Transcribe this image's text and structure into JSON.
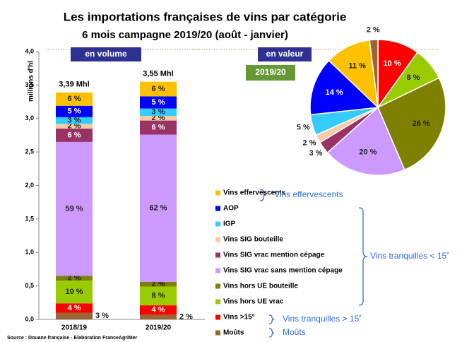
{
  "title": "Les importations françaises de vins par catégorie",
  "subtitle": "6 mois campagne 2019/20 (août - janvier)",
  "source": "Source : Douane française - Elaboration FranceAgriMer",
  "chart_data": [
    {
      "type": "bar",
      "stacked": true,
      "label_left": "en volume",
      "ylabel": "millions d'hl",
      "categories": [
        "2018/19",
        "2019/20"
      ],
      "ylim": [
        0,
        4
      ],
      "yticks": [
        {
          "value": 0,
          "label": "0,0"
        },
        {
          "value": 0.5,
          "label": "0,5"
        },
        {
          "value": 1,
          "label": "1,0"
        },
        {
          "value": 1.5,
          "label": "1,5"
        },
        {
          "value": 2,
          "label": "2,0"
        },
        {
          "value": 2.5,
          "label": "2,5"
        },
        {
          "value": 3,
          "label": "3,0"
        },
        {
          "value": 3.5,
          "label": "3,5"
        },
        {
          "value": 4,
          "label": "4,0"
        }
      ],
      "totals": [
        3.39,
        3.55
      ],
      "total_labels": [
        "3,39 Mhl",
        "3,55 Mhl"
      ],
      "series": [
        {
          "name": "Moûts",
          "color": "#996633",
          "values": [
            0.1,
            0.07
          ],
          "value_labels": [
            "3 %",
            "2 %"
          ]
        },
        {
          "name": "Vins >15°",
          "color": "#ff0000",
          "values": [
            0.14,
            0.14
          ],
          "value_labels": [
            "4 %",
            "4 %"
          ]
        },
        {
          "name": "Vins hors UE vrac",
          "color": "#99cc00",
          "values": [
            0.34,
            0.28
          ],
          "value_labels": [
            "10 %",
            "8 %"
          ]
        },
        {
          "name": "Vins hors UE bouteille",
          "color": "#808000",
          "values": [
            0.07,
            0.07
          ],
          "value_labels": [
            "2 %",
            "2 %"
          ]
        },
        {
          "name": "Vins SIG vrac sans mention cépage",
          "color": "#cc99ff",
          "values": [
            2.0,
            2.2
          ],
          "value_labels": [
            "59 %",
            "62 %"
          ]
        },
        {
          "name": "Vins SIG vrac mention cépage",
          "color": "#993366",
          "values": [
            0.2,
            0.21
          ],
          "value_labels": [
            "6 %",
            "6 %"
          ]
        },
        {
          "name": "Vins SIG bouteille",
          "color": "#fbc9a3",
          "values": [
            0.07,
            0.07
          ],
          "value_labels": [
            "2 %",
            "2 %"
          ]
        },
        {
          "name": "IGP",
          "color": "#33ccff",
          "values": [
            0.1,
            0.11
          ],
          "value_labels": [
            "3 %",
            "3 %"
          ]
        },
        {
          "name": "AOP",
          "color": "#0000ff",
          "values": [
            0.17,
            0.18
          ],
          "value_labels": [
            "5 %",
            "5 %"
          ]
        },
        {
          "name": "Vins effervescents",
          "color": "#ffc000",
          "values": [
            0.2,
            0.22
          ],
          "value_labels": [
            "6 %",
            "6 %"
          ]
        }
      ],
      "groups": [
        "Vins effervescents",
        "Vins tranquilles < 15˚",
        "Vins tranquilles > 15˚",
        "Moûts"
      ]
    },
    {
      "type": "pie",
      "label_left": "en valeur",
      "label_period": "2019/20",
      "values": [
        10,
        8,
        26,
        20,
        3,
        2,
        5,
        14,
        11,
        2
      ],
      "value_labels": [
        "10 %",
        "8 %",
        "26 %",
        "20 %",
        "3 %",
        "2 %",
        "5 %",
        "14 %",
        "11 %",
        "2 %"
      ],
      "colors": [
        "#ff0000",
        "#99cc00",
        "#808000",
        "#cc99ff",
        "#993366",
        "#fbc9a3",
        "#33ccff",
        "#0000ff",
        "#ffc000",
        "#996633"
      ]
    }
  ]
}
